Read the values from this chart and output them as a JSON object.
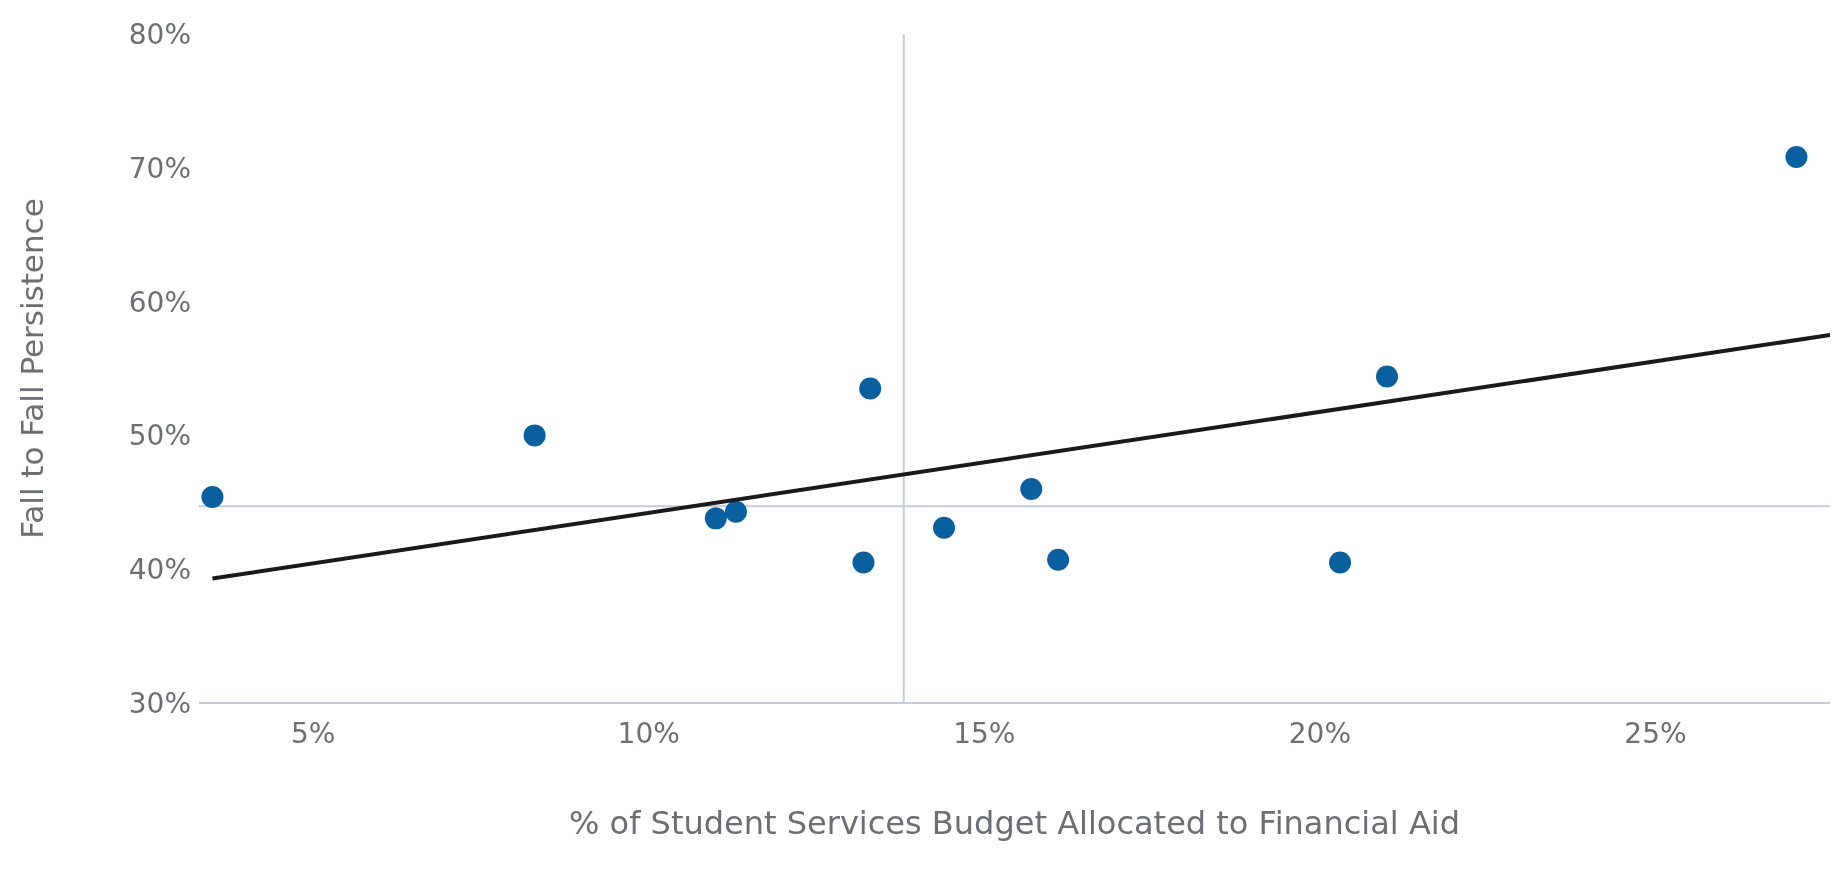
{
  "chart_data": {
    "type": "scatter",
    "xlabel": "% of Student Services Budget Allocated to Financial Aid",
    "ylabel": "Fall to Fall Persistence",
    "xlim": [
      3.3,
      27.6
    ],
    "ylim": [
      30,
      80
    ],
    "xticks": [
      {
        "value": 5,
        "label": "5%"
      },
      {
        "value": 10,
        "label": "10%"
      },
      {
        "value": 15,
        "label": "15%"
      },
      {
        "value": 20,
        "label": "20%"
      },
      {
        "value": 25,
        "label": "25%"
      }
    ],
    "yticks": [
      {
        "value": 30,
        "label": "30%"
      },
      {
        "value": 40,
        "label": "40%"
      },
      {
        "value": 50,
        "label": "50%"
      },
      {
        "value": 60,
        "label": "60%"
      },
      {
        "value": 70,
        "label": "70%"
      },
      {
        "value": 80,
        "label": "80%"
      }
    ],
    "grid": false,
    "legend": false,
    "marker": "circle",
    "series": [
      {
        "color": "#0a609e",
        "x": [
          3.5,
          8.3,
          11.0,
          11.3,
          13.2,
          13.3,
          14.4,
          15.7,
          16.1,
          20.3,
          21.0,
          27.1
        ],
        "values": [
          45.4,
          50.0,
          43.8,
          44.3,
          40.5,
          53.5,
          43.1,
          46.0,
          40.7,
          40.5,
          54.4,
          70.8
        ]
      },
      {
        "type": "line",
        "color": "#1a1a1a",
        "marker": "none",
        "x": [
          3.5,
          27.6
        ],
        "values": [
          39.3,
          57.5
        ]
      }
    ],
    "ref_lines": [
      {
        "axis": "x",
        "value": 13.8,
        "color": "#c5ccd8"
      },
      {
        "axis": "y",
        "value": 44.7,
        "color": "#c5ccd8"
      }
    ]
  }
}
